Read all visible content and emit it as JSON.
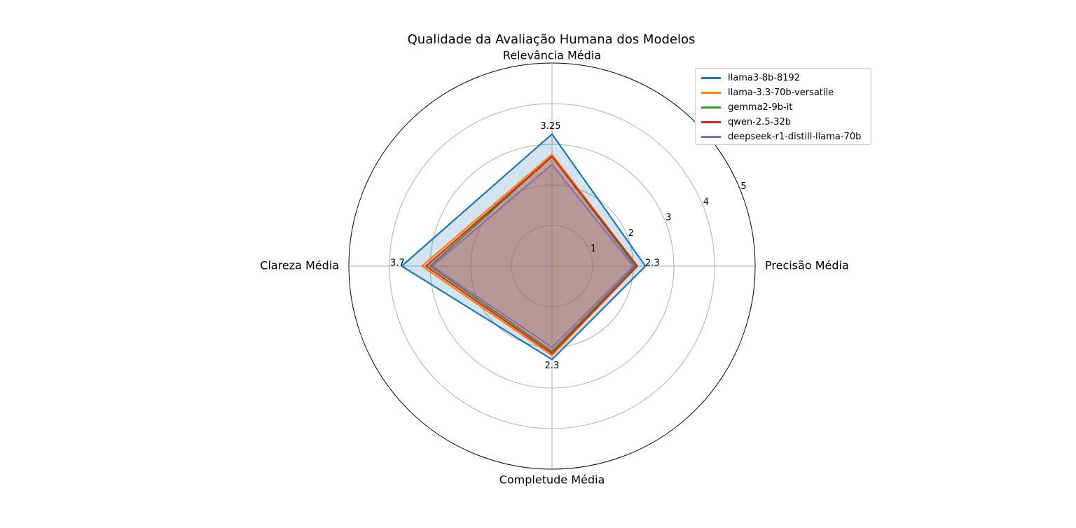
{
  "chart_data": {
    "type": "radar",
    "title": "Qualidade da Avaliação Humana dos Modelos",
    "axes": [
      "Relevância Média",
      "Precisão Média",
      "Completude Média",
      "Clareza Média"
    ],
    "radial_ticks": [
      "1",
      "2",
      "3",
      "4",
      "5"
    ],
    "rlim": [
      0,
      5
    ],
    "grid": true,
    "legend_position": "top-right",
    "series": [
      {
        "name": "llama3-8b-8192",
        "color": "#1f77b4",
        "values": [
          3.25,
          2.3,
          2.3,
          3.7
        ],
        "fill": true
      },
      {
        "name": "llama-3.3-70b-versatile",
        "color": "#ff7f0e",
        "values": [
          2.75,
          2.1,
          2.2,
          3.2
        ],
        "fill": true
      },
      {
        "name": "gemma2-9b-it",
        "color": "#2ca02c",
        "values": [
          2.7,
          2.05,
          2.1,
          3.0
        ],
        "fill": true
      },
      {
        "name": "qwen-2.5-32b",
        "color": "#d62728",
        "values": [
          2.7,
          2.1,
          2.15,
          3.1
        ],
        "fill": true
      },
      {
        "name": "deepseek-r1-distill-llama-70b",
        "color": "#9467bd",
        "values": [
          2.5,
          2.0,
          2.0,
          2.95
        ],
        "fill": true
      }
    ],
    "annotations": [
      "3.25",
      "2.3",
      "2.3",
      "3.7"
    ]
  }
}
